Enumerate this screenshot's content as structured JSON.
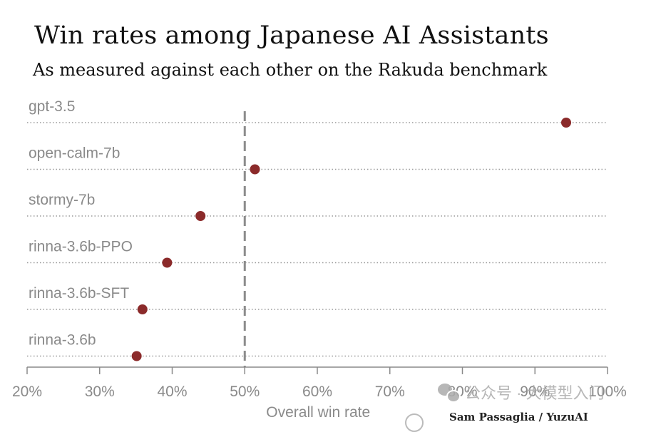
{
  "chart_data": {
    "type": "scatter",
    "title": "Win rates among Japanese AI Assistants",
    "subtitle": "As measured against each other on the Rakuda benchmark",
    "xlabel": "Overall win rate",
    "ylabel": "",
    "xlim": [
      20,
      100
    ],
    "x_ticks": [
      "20%",
      "30%",
      "40%",
      "50%",
      "60%",
      "70%",
      "80%",
      "90%",
      "100%"
    ],
    "reference_line": 50,
    "grid": false,
    "categories": [
      "gpt-3.5",
      "open-calm-7b",
      "stormy-7b",
      "rinna-3.6b-PPO",
      "rinna-3.6b-SFT",
      "rinna-3.6b"
    ],
    "values": [
      94.3,
      51.4,
      43.9,
      39.3,
      35.9,
      35.1
    ],
    "point_color": "#8b2a2a"
  },
  "credit": "Sam Passaglia / YuzuAI",
  "watermark": "公众号 · 大模型入门"
}
